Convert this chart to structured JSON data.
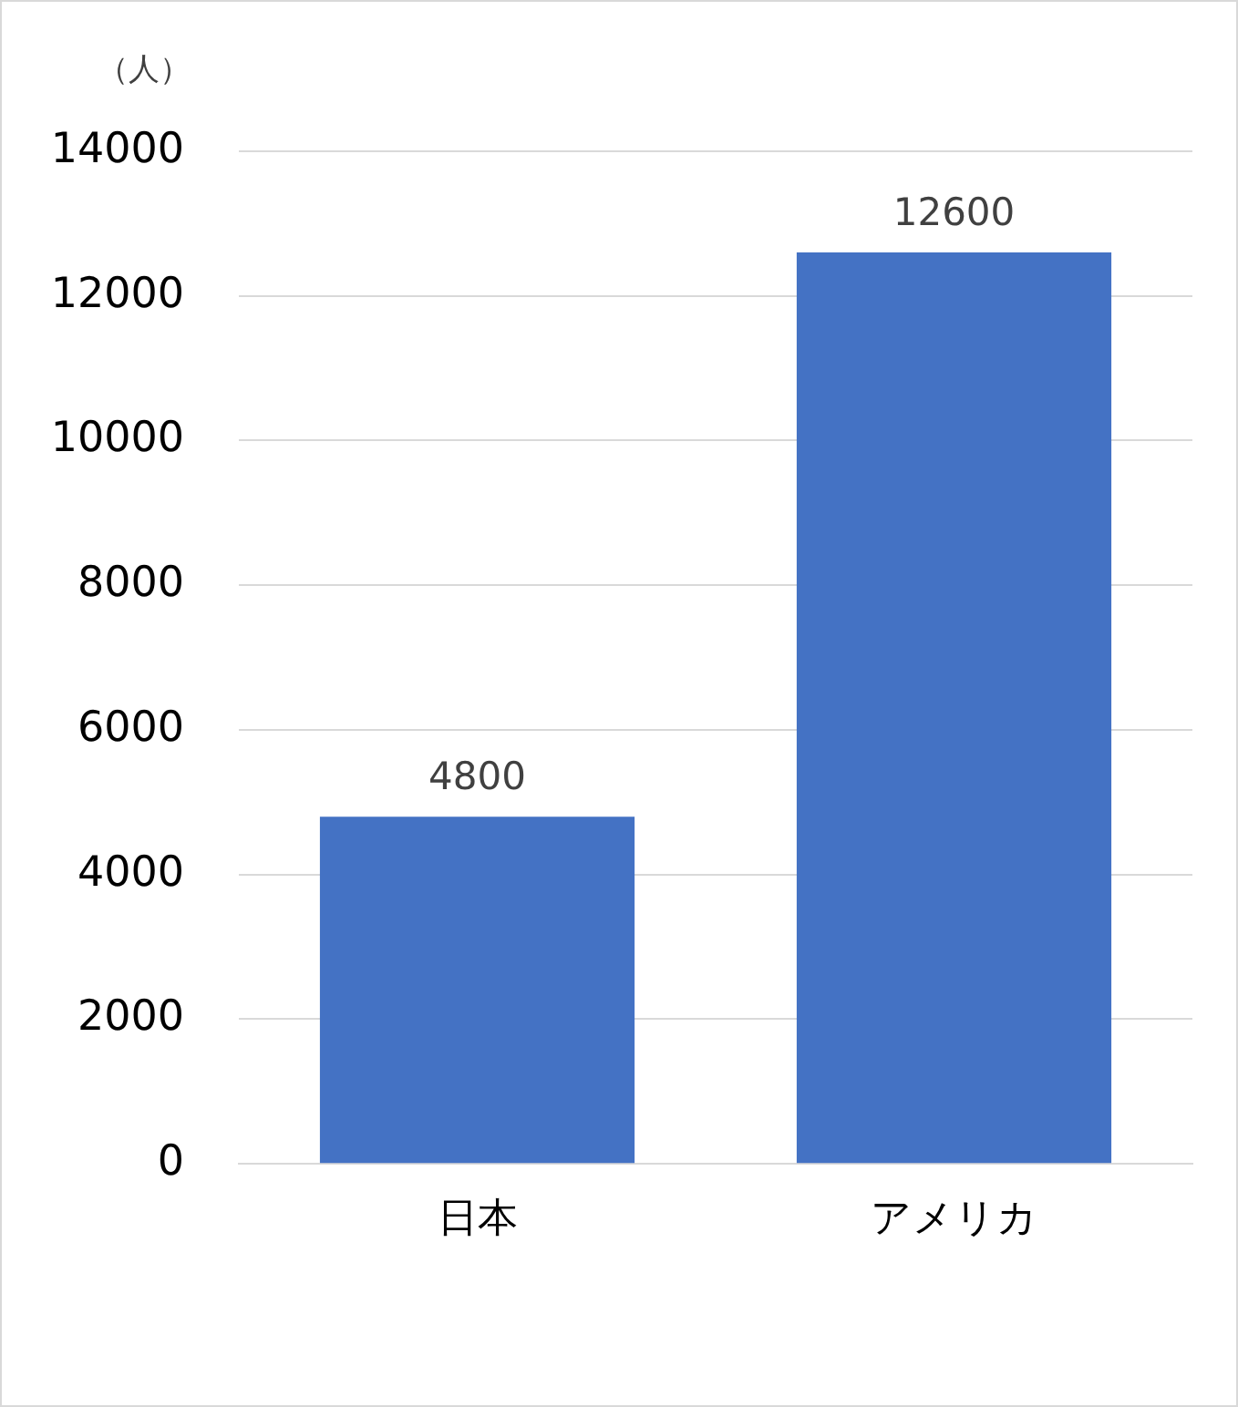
{
  "chart_data": {
    "type": "bar",
    "ylabel": "（人）",
    "categories": [
      "日本",
      "アメリカ"
    ],
    "values": [
      4800,
      12600
    ],
    "color": "#4472c4",
    "ylim": [
      0,
      14000
    ],
    "yticks": [
      0,
      2000,
      4000,
      6000,
      8000,
      10000,
      12000,
      14000
    ],
    "grid": "y",
    "data_labels": true,
    "legend": false
  }
}
